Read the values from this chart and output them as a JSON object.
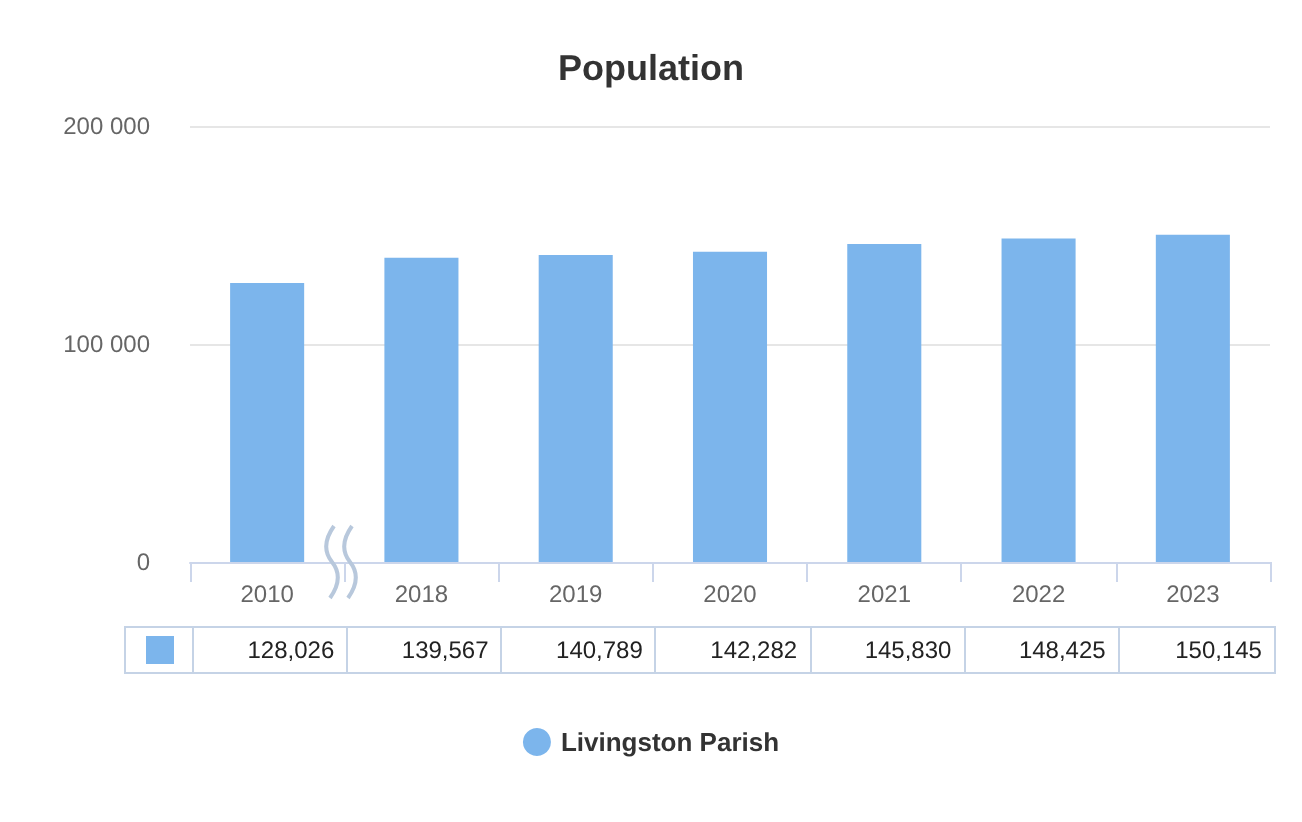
{
  "chart_data": {
    "type": "bar",
    "title": "Population",
    "categories": [
      "2010",
      "2018",
      "2019",
      "2020",
      "2021",
      "2022",
      "2023"
    ],
    "series": [
      {
        "name": "Livingston Parish",
        "color": "#7cb5ec",
        "values": [
          128026,
          139567,
          140789,
          142282,
          145830,
          148425,
          150145
        ],
        "value_labels": [
          "128,026",
          "139,567",
          "140,789",
          "142,282",
          "145,830",
          "148,425",
          "150,145"
        ]
      }
    ],
    "ylim": [
      0,
      200000
    ],
    "yticks": [
      0,
      {
        "value": 100000,
        "label": "100 000"
      },
      {
        "value": 200000,
        "label": "200 000"
      }
    ],
    "grid": "y",
    "legend": "bottom"
  }
}
